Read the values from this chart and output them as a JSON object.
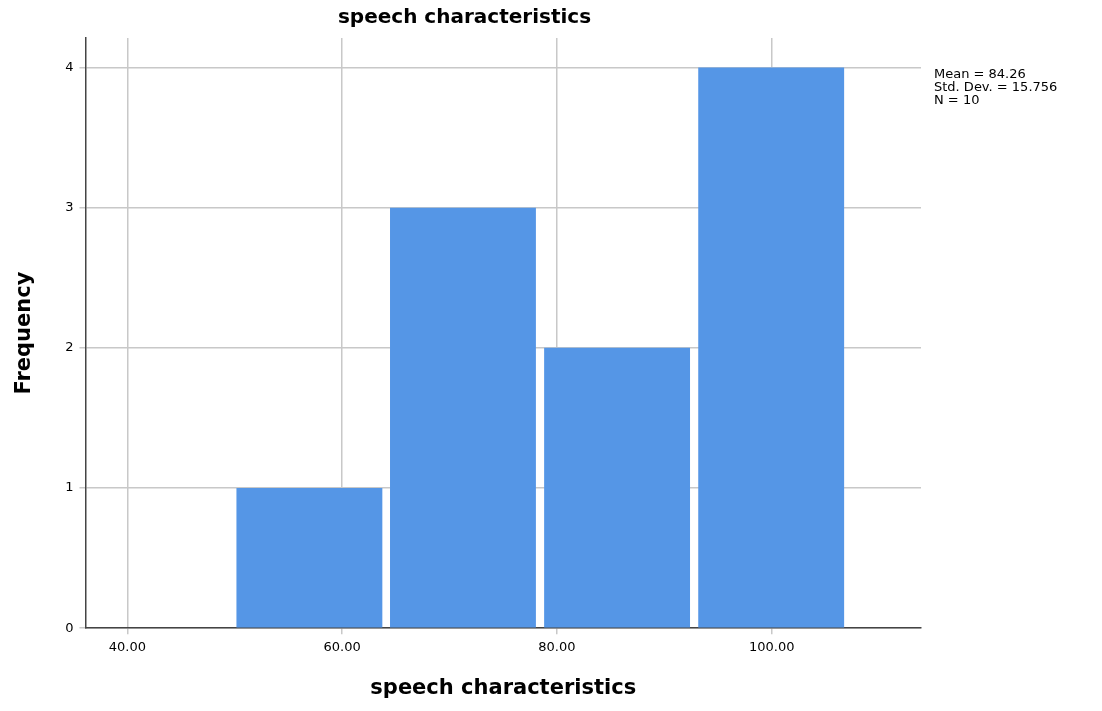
{
  "chart_data": {
    "type": "histogram",
    "title": "speech characteristics",
    "xlabel": "speech characteristics",
    "ylabel": "Frequency",
    "bins": [
      49.8,
      64.1,
      78.4,
      92.8,
      107.1
    ],
    "values": [
      1,
      3,
      2,
      4
    ],
    "color": "#5596e6",
    "xlim": [
      36.1,
      113.9
    ],
    "xticks": [
      {
        "value": 40,
        "label": "40.00"
      },
      {
        "value": 60,
        "label": "60.00"
      },
      {
        "value": 80,
        "label": "80.00"
      },
      {
        "value": 100,
        "label": "100.00"
      }
    ],
    "ylim": [
      0,
      4.21
    ],
    "yticks": [
      0,
      1,
      2,
      3,
      4
    ],
    "grid": true,
    "annotations": [
      "Mean = 84.26",
      "Std. Dev. = 15.756",
      "N = 10"
    ]
  }
}
